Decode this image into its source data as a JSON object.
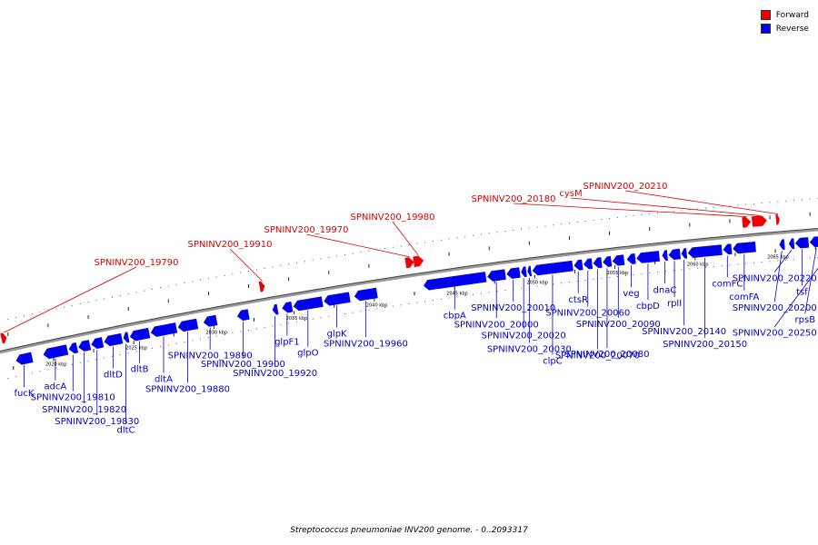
{
  "colors": {
    "forward": "#ee0000",
    "reverse": "#0000ee",
    "backbone": "#888888",
    "leader_forward": "#dd0000",
    "leader_reverse": "#0000cc"
  },
  "legend": [
    {
      "label": "Forward",
      "color": "#ee0000"
    },
    {
      "label": "Reverse",
      "color": "#0000ee"
    }
  ],
  "caption": "Streptococcus pneumoniae INV200 genome. - 0..2093317",
  "chart_data": {
    "type": "genome-map",
    "start_kbp": 2016.5,
    "end_kbp": 2067.5,
    "tick_labels": [
      {
        "kbp": 2020,
        "label": "2020 kbp"
      },
      {
        "kbp": 2025,
        "label": "2025 kbp"
      },
      {
        "kbp": 2030,
        "label": "2030 kbp"
      },
      {
        "kbp": 2035,
        "label": "2035 kbp"
      },
      {
        "kbp": 2040,
        "label": "2040 kbp"
      },
      {
        "kbp": 2045,
        "label": "2045 kbp"
      },
      {
        "kbp": 2050,
        "label": "2050 kbp"
      },
      {
        "kbp": 2055,
        "label": "2055 kbp"
      },
      {
        "kbp": 2060,
        "label": "2060 kbp"
      },
      {
        "kbp": 2065,
        "label": "2065 kbp"
      }
    ],
    "forward_genes": [
      {
        "name": "SPNINV200_19790",
        "start": 2016.6,
        "end": 2016.9
      },
      {
        "name": "SPNINV200_19910",
        "start": 2032.7,
        "end": 2033.0
      },
      {
        "name": "SPNINV200_19970",
        "start": 2041.8,
        "end": 2042.3
      },
      {
        "name": "SPNINV200_19980",
        "start": 2042.3,
        "end": 2042.9
      },
      {
        "name": "SPNINV200_20180",
        "start": 2062.8,
        "end": 2063.3
      },
      {
        "name": "cysM",
        "start": 2063.4,
        "end": 2064.3
      },
      {
        "name": "SPNINV200_20210",
        "start": 2064.9,
        "end": 2065.1
      }
    ],
    "reverse_genes": [
      {
        "name": "fucK",
        "start": 2017.5,
        "end": 2018.5,
        "label": true
      },
      {
        "name": "adcA",
        "start": 2019.2,
        "end": 2020.7,
        "label": true
      },
      {
        "name": "SPNINV200_19810",
        "start": 2020.8,
        "end": 2021.3,
        "label": true
      },
      {
        "name": "SPNINV200_19820",
        "start": 2021.4,
        "end": 2022.1,
        "label": true
      },
      {
        "name": "SPNINV200_19830",
        "start": 2022.2,
        "end": 2022.9,
        "label": true
      },
      {
        "name": "dltD",
        "start": 2023.0,
        "end": 2024.1,
        "label": true
      },
      {
        "name": "dltC",
        "start": 2024.2,
        "end": 2024.5,
        "label": true
      },
      {
        "name": "dltB",
        "start": 2024.6,
        "end": 2025.8,
        "label": true
      },
      {
        "name": "dltA",
        "start": 2025.9,
        "end": 2027.5,
        "label": true
      },
      {
        "name": "SPNINV200_19880",
        "start": 2027.6,
        "end": 2028.8,
        "label": true
      },
      {
        "name": "SPNINV200_19890",
        "start": 2029.2,
        "end": 2030.0,
        "label": true
      },
      {
        "name": "SPNINV200_19900",
        "start": 2031.3,
        "end": 2032.0,
        "label": true
      },
      {
        "name": "SPNINV200_19920",
        "start": 2033.5,
        "end": 2033.8,
        "label": true
      },
      {
        "name": "glpF1",
        "start": 2034.1,
        "end": 2034.7,
        "label": true
      },
      {
        "name": "glpO",
        "start": 2034.8,
        "end": 2036.6,
        "label": true
      },
      {
        "name": "glpK",
        "start": 2036.7,
        "end": 2038.3,
        "label": true
      },
      {
        "name": "SPNINV200_19960",
        "start": 2038.6,
        "end": 2040.0,
        "label": true
      },
      {
        "name": "cbpA",
        "start": 2042.9,
        "end": 2046.8,
        "label": true
      },
      {
        "name": "SPNINV200_20000",
        "start": 2046.9,
        "end": 2048.0,
        "label": true
      },
      {
        "name": "SPNINV200_20010",
        "start": 2048.1,
        "end": 2048.9,
        "label": true
      },
      {
        "name": "SPNINV200_20020",
        "start": 2049.0,
        "end": 2049.3,
        "label": true
      },
      {
        "name": "SPNINV200_20030",
        "start": 2049.4,
        "end": 2049.6,
        "label": true
      },
      {
        "name": "clpC",
        "start": 2049.7,
        "end": 2052.2,
        "label": true
      },
      {
        "name": "ctsR",
        "start": 2052.3,
        "end": 2052.8,
        "label": true
      },
      {
        "name": "SPNINV200_20060",
        "start": 2052.9,
        "end": 2053.4,
        "label": true
      },
      {
        "name": "SPNINV200_20070",
        "start": 2053.5,
        "end": 2054.0,
        "label": true
      },
      {
        "name": "SPNINV200_20080",
        "start": 2054.1,
        "end": 2054.6,
        "label": true
      },
      {
        "name": "SPNINV200_20090",
        "start": 2054.7,
        "end": 2055.4,
        "label": true
      },
      {
        "name": "veg",
        "start": 2055.6,
        "end": 2056.1,
        "label": true
      },
      {
        "name": "cbpD",
        "start": 2056.2,
        "end": 2057.6,
        "label": true
      },
      {
        "name": "dnaC",
        "start": 2057.8,
        "end": 2058.1,
        "label": true
      },
      {
        "name": "rplI",
        "start": 2058.2,
        "end": 2058.9,
        "label": true
      },
      {
        "name": "SPNINV200_20140",
        "start": 2059.0,
        "end": 2059.3,
        "label": true
      },
      {
        "name": "SPNINV200_20150",
        "start": 2059.4,
        "end": 2061.5,
        "label": true
      },
      {
        "name": "comFC",
        "start": 2061.6,
        "end": 2062.1,
        "label": true
      },
      {
        "name": "comFA",
        "start": 2062.2,
        "end": 2063.6,
        "label": true
      },
      {
        "name": "SPNINV200_20200",
        "start": 2065.1,
        "end": 2065.4,
        "label": true
      },
      {
        "name": "SPNINV200_20220",
        "start": 2065.7,
        "end": 2066.0,
        "label": true
      },
      {
        "name": "tsf",
        "start": 2066.1,
        "end": 2066.9,
        "label": true
      },
      {
        "name": "rpsB",
        "start": 2067.0,
        "end": 2067.8,
        "label": true
      },
      {
        "name": "SPNINV200_20250",
        "start": 2068.0,
        "end": 2069.0,
        "label": true
      }
    ]
  }
}
